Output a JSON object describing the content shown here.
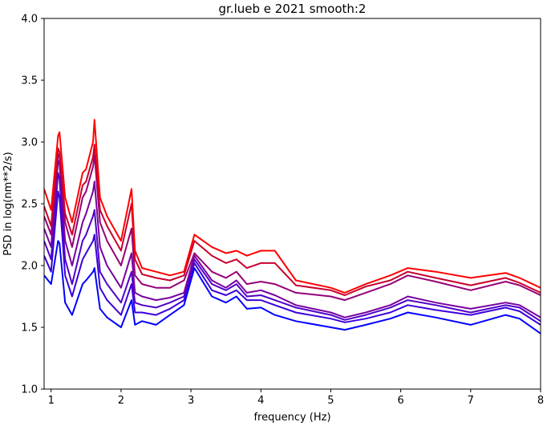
{
  "chart_data": {
    "type": "line",
    "title": "gr.lueb e 2021 smooth:2",
    "xlabel": "frequency (Hz)",
    "ylabel": "PSD in log(nm**2/s)",
    "xlim": [
      0.9,
      8
    ],
    "ylim": [
      1.0,
      4.0
    ],
    "xticks": [
      1,
      2,
      3,
      4,
      5,
      6,
      7,
      8
    ],
    "yticks": [
      1.0,
      1.5,
      2.0,
      2.5,
      3.0,
      3.5,
      4.0
    ],
    "grid": false,
    "legend": "none",
    "x": [
      0.9,
      1.0,
      1.1,
      1.12,
      1.2,
      1.3,
      1.45,
      1.5,
      1.6,
      1.62,
      1.7,
      1.8,
      2.0,
      2.15,
      2.2,
      2.3,
      2.5,
      2.7,
      2.9,
      3.05,
      3.3,
      3.5,
      3.65,
      3.8,
      4.0,
      4.2,
      4.5,
      5.0,
      5.2,
      5.5,
      5.85,
      6.1,
      6.5,
      7.0,
      7.5,
      7.7,
      8.0
    ],
    "series": [
      {
        "color": "#ff0000",
        "values": [
          2.62,
          2.45,
          3.05,
          3.08,
          2.55,
          2.35,
          2.75,
          2.78,
          3.0,
          3.18,
          2.55,
          2.4,
          2.2,
          2.62,
          2.12,
          1.98,
          1.95,
          1.92,
          1.95,
          2.25,
          2.15,
          2.1,
          2.12,
          2.08,
          2.12,
          2.12,
          1.88,
          1.82,
          1.78,
          1.85,
          1.92,
          1.98,
          1.95,
          1.9,
          1.94,
          1.9,
          1.82
        ]
      },
      {
        "color": "#c8002d",
        "values": [
          2.48,
          2.32,
          2.95,
          2.92,
          2.42,
          2.25,
          2.65,
          2.68,
          2.88,
          2.98,
          2.45,
          2.32,
          2.12,
          2.5,
          2.05,
          1.93,
          1.9,
          1.88,
          1.92,
          2.2,
          2.08,
          2.02,
          2.05,
          1.98,
          2.02,
          2.02,
          1.84,
          1.8,
          1.76,
          1.83,
          1.88,
          1.95,
          1.9,
          1.84,
          1.9,
          1.86,
          1.78
        ]
      },
      {
        "color": "#960078",
        "values": [
          2.4,
          2.25,
          2.9,
          2.88,
          2.35,
          2.15,
          2.55,
          2.6,
          2.8,
          2.9,
          2.35,
          2.2,
          2.0,
          2.3,
          1.92,
          1.85,
          1.82,
          1.82,
          1.88,
          2.1,
          1.95,
          1.9,
          1.95,
          1.85,
          1.87,
          1.85,
          1.78,
          1.75,
          1.72,
          1.78,
          1.85,
          1.92,
          1.87,
          1.8,
          1.87,
          1.84,
          1.76
        ]
      },
      {
        "color": "#7800a0",
        "values": [
          2.3,
          2.15,
          2.85,
          2.82,
          2.2,
          2.0,
          2.35,
          2.42,
          2.6,
          2.68,
          2.15,
          2.0,
          1.82,
          2.1,
          1.78,
          1.75,
          1.72,
          1.74,
          1.78,
          2.08,
          1.88,
          1.82,
          1.88,
          1.78,
          1.8,
          1.76,
          1.68,
          1.62,
          1.58,
          1.62,
          1.68,
          1.75,
          1.7,
          1.65,
          1.7,
          1.68,
          1.58
        ]
      },
      {
        "color": "#5000c8",
        "values": [
          2.2,
          2.05,
          2.75,
          2.7,
          2.05,
          1.85,
          2.2,
          2.25,
          2.4,
          2.45,
          1.95,
          1.85,
          1.7,
          1.95,
          1.7,
          1.68,
          1.66,
          1.7,
          1.75,
          2.05,
          1.85,
          1.8,
          1.85,
          1.75,
          1.76,
          1.72,
          1.66,
          1.6,
          1.56,
          1.6,
          1.66,
          1.72,
          1.68,
          1.62,
          1.68,
          1.66,
          1.55
        ]
      },
      {
        "color": "#3c00dc",
        "values": [
          2.08,
          1.95,
          2.6,
          2.55,
          1.92,
          1.75,
          2.05,
          2.1,
          2.2,
          2.25,
          1.82,
          1.72,
          1.6,
          1.85,
          1.62,
          1.62,
          1.6,
          1.65,
          1.72,
          2.02,
          1.8,
          1.76,
          1.8,
          1.72,
          1.72,
          1.68,
          1.62,
          1.57,
          1.54,
          1.57,
          1.62,
          1.68,
          1.64,
          1.6,
          1.66,
          1.63,
          1.52
        ]
      },
      {
        "color": "#0000ff",
        "values": [
          1.92,
          1.85,
          2.2,
          2.18,
          1.7,
          1.6,
          1.85,
          1.88,
          1.95,
          1.98,
          1.65,
          1.58,
          1.5,
          1.72,
          1.52,
          1.55,
          1.52,
          1.6,
          1.68,
          1.98,
          1.75,
          1.7,
          1.75,
          1.65,
          1.66,
          1.6,
          1.55,
          1.5,
          1.48,
          1.52,
          1.57,
          1.62,
          1.58,
          1.52,
          1.6,
          1.57,
          1.45
        ]
      }
    ]
  }
}
